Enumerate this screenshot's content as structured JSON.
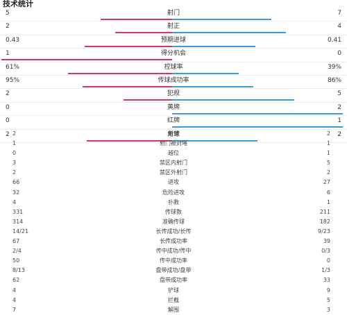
{
  "title": "技术统计",
  "colors": {
    "home": "#d6336c",
    "away": "#3a9bdc"
  },
  "bar_stats": [
    {
      "label": "射门",
      "home": "5",
      "away": "7",
      "home_share": 0.417,
      "away_share": 0.583
    },
    {
      "label": "射正",
      "home": "2",
      "away": "4",
      "home_share": 0.333,
      "away_share": 0.667
    },
    {
      "label": "预期进球",
      "home": "0.43",
      "away": "0.41",
      "home_share": 0.512,
      "away_share": 0.488
    },
    {
      "label": "得分机会",
      "home": "1",
      "away": "0",
      "home_share": 1.0,
      "away_share": 0.0
    },
    {
      "label": "控球率",
      "home": "61%",
      "away": "39%",
      "home_share": 0.61,
      "away_share": 0.39
    },
    {
      "label": "传球成功率",
      "home": "95%",
      "away": "86%",
      "home_share": 0.525,
      "away_share": 0.475
    },
    {
      "label": "犯规",
      "home": "2",
      "away": "5",
      "home_share": 0.286,
      "away_share": 0.714
    },
    {
      "label": "黄牌",
      "home": "0",
      "away": "2",
      "home_share": 0.0,
      "away_share": 1.0
    },
    {
      "label": "红牌",
      "home": "0",
      "away": "1",
      "home_share": 0.0,
      "away_share": 1.0
    },
    {
      "label": "角球",
      "home": "2",
      "away": "2",
      "home_share": 0.5,
      "away_share": 0.5
    }
  ],
  "list_stats": [
    {
      "label": "射偏",
      "home": "2",
      "away": "2"
    },
    {
      "label": "射门被封堵",
      "home": "1",
      "away": "1"
    },
    {
      "label": "越位",
      "home": "0",
      "away": "1"
    },
    {
      "label": "禁区内射门",
      "home": "3",
      "away": "5"
    },
    {
      "label": "禁区外射门",
      "home": "2",
      "away": "2"
    },
    {
      "label": "进攻",
      "home": "66",
      "away": "27"
    },
    {
      "label": "危险进攻",
      "home": "32",
      "away": "6"
    },
    {
      "label": "扑救",
      "home": "4",
      "away": "1"
    },
    {
      "label": "传球数",
      "home": "331",
      "away": "211"
    },
    {
      "label": "准确传球",
      "home": "314",
      "away": "182"
    },
    {
      "label": "长传成功/长传",
      "home": "14/21",
      "away": "9/23"
    },
    {
      "label": "长传成功率",
      "home": "67",
      "away": "39"
    },
    {
      "label": "传中成功/传中",
      "home": "2/4",
      "away": "0/3"
    },
    {
      "label": "传中成功率",
      "home": "50",
      "away": "0"
    },
    {
      "label": "盘带成功/盘带",
      "home": "8/13",
      "away": "1/3"
    },
    {
      "label": "盘带成功率",
      "home": "62",
      "away": "33"
    },
    {
      "label": "铲球",
      "home": "4",
      "away": "9"
    },
    {
      "label": "拦截",
      "home": "4",
      "away": "5"
    },
    {
      "label": "解围",
      "home": "7",
      "away": "3"
    }
  ]
}
